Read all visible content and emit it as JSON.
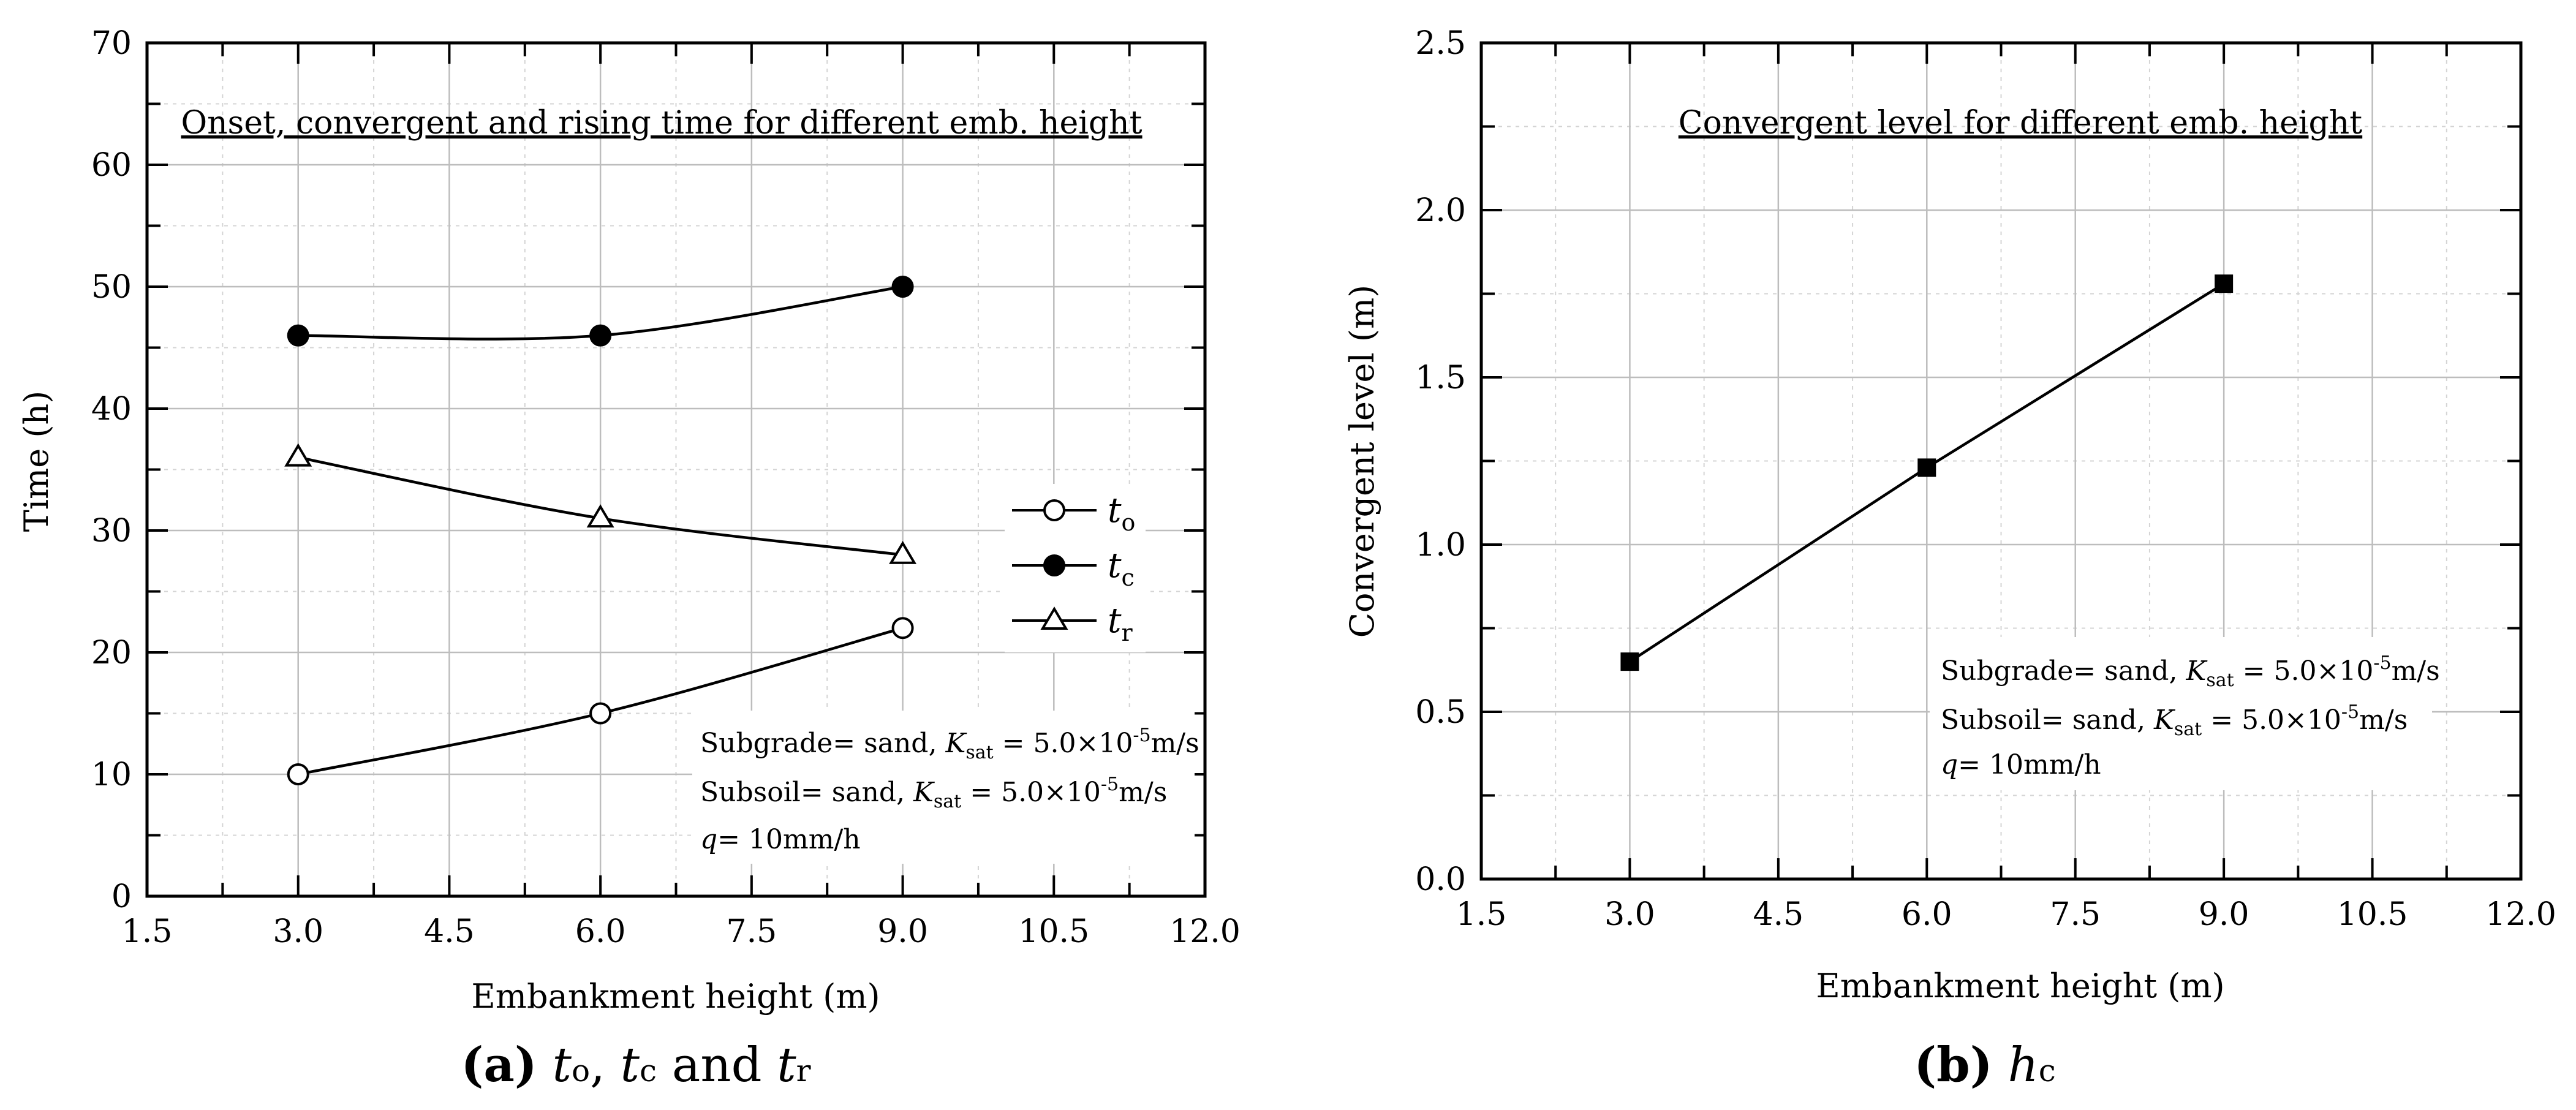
{
  "chart_data": [
    {
      "type": "line",
      "title": "Onset, convergent and rising time for different emb. height",
      "xlabel": "Embankment height (m)",
      "ylabel": "Time (h)",
      "xlim": [
        1.5,
        12.0
      ],
      "ylim": [
        0,
        70
      ],
      "xticks": [
        1.5,
        3.0,
        4.5,
        6.0,
        7.5,
        9.0,
        10.5,
        12.0
      ],
      "xtick_labels": [
        "1.5",
        "3.0",
        "4.5",
        "6.0",
        "7.5",
        "9.0",
        "10.5",
        "12.0"
      ],
      "yticks": [
        0,
        10,
        20,
        30,
        40,
        50,
        60,
        70
      ],
      "ytick_labels": [
        "0",
        "10",
        "20",
        "30",
        "40",
        "50",
        "60",
        "70"
      ],
      "grid": true,
      "legend_position": "right",
      "series": [
        {
          "name": "to",
          "symbol": "t",
          "sub": "o",
          "marker": "circle-open",
          "x": [
            3.0,
            6.0,
            9.0
          ],
          "values": [
            10,
            15,
            22
          ]
        },
        {
          "name": "tc",
          "symbol": "t",
          "sub": "c",
          "marker": "circle-filled",
          "x": [
            3.0,
            6.0,
            9.0
          ],
          "values": [
            46,
            46,
            50
          ]
        },
        {
          "name": "tr",
          "symbol": "t",
          "sub": "r",
          "marker": "triangle-open",
          "x": [
            3.0,
            6.0,
            9.0
          ],
          "values": [
            36,
            31,
            28
          ]
        }
      ],
      "annotations": {
        "subgrade_prefix": "Subgrade= sand, ",
        "subsoil_prefix": "Subsoil= sand, ",
        "k_symbol": "K",
        "k_sub": "sat",
        "k_value": " = 5.0×10",
        "k_exp": "-5",
        "k_unit": "m/s",
        "q_symbol": "q",
        "q_value": "= 10mm/h"
      },
      "caption": {
        "label": "(a)",
        "text_parts": [
          "t",
          "o",
          ", ",
          "t",
          "c",
          " and ",
          "t",
          "r"
        ]
      }
    },
    {
      "type": "line",
      "title": "Convergent level for different emb. height",
      "xlabel": "Embankment height (m)",
      "ylabel": "Convergent level (m)",
      "xlim": [
        1.5,
        12.0
      ],
      "ylim": [
        0.0,
        2.5
      ],
      "xticks": [
        1.5,
        3.0,
        4.5,
        6.0,
        7.5,
        9.0,
        10.5,
        12.0
      ],
      "xtick_labels": [
        "1.5",
        "3.0",
        "4.5",
        "6.0",
        "7.5",
        "9.0",
        "10.5",
        "12.0"
      ],
      "yticks": [
        0.0,
        0.5,
        1.0,
        1.5,
        2.0,
        2.5
      ],
      "ytick_labels": [
        "0.0",
        "0.5",
        "1.0",
        "1.5",
        "2.0",
        "2.5"
      ],
      "grid": true,
      "series": [
        {
          "name": "hc",
          "marker": "square-filled",
          "x": [
            3.0,
            6.0,
            9.0
          ],
          "values": [
            0.65,
            1.23,
            1.78
          ]
        }
      ],
      "annotations": {
        "subgrade_prefix": "Subgrade= sand, ",
        "subsoil_prefix": "Subsoil= sand, ",
        "k_symbol": "K",
        "k_sub": "sat",
        "k_value": " = 5.0×10",
        "k_exp": "-5",
        "k_unit": "m/s",
        "q_symbol": "q",
        "q_value": "= 10mm/h"
      },
      "caption": {
        "label": "(b)",
        "text_parts": [
          "h",
          "c"
        ]
      }
    }
  ]
}
